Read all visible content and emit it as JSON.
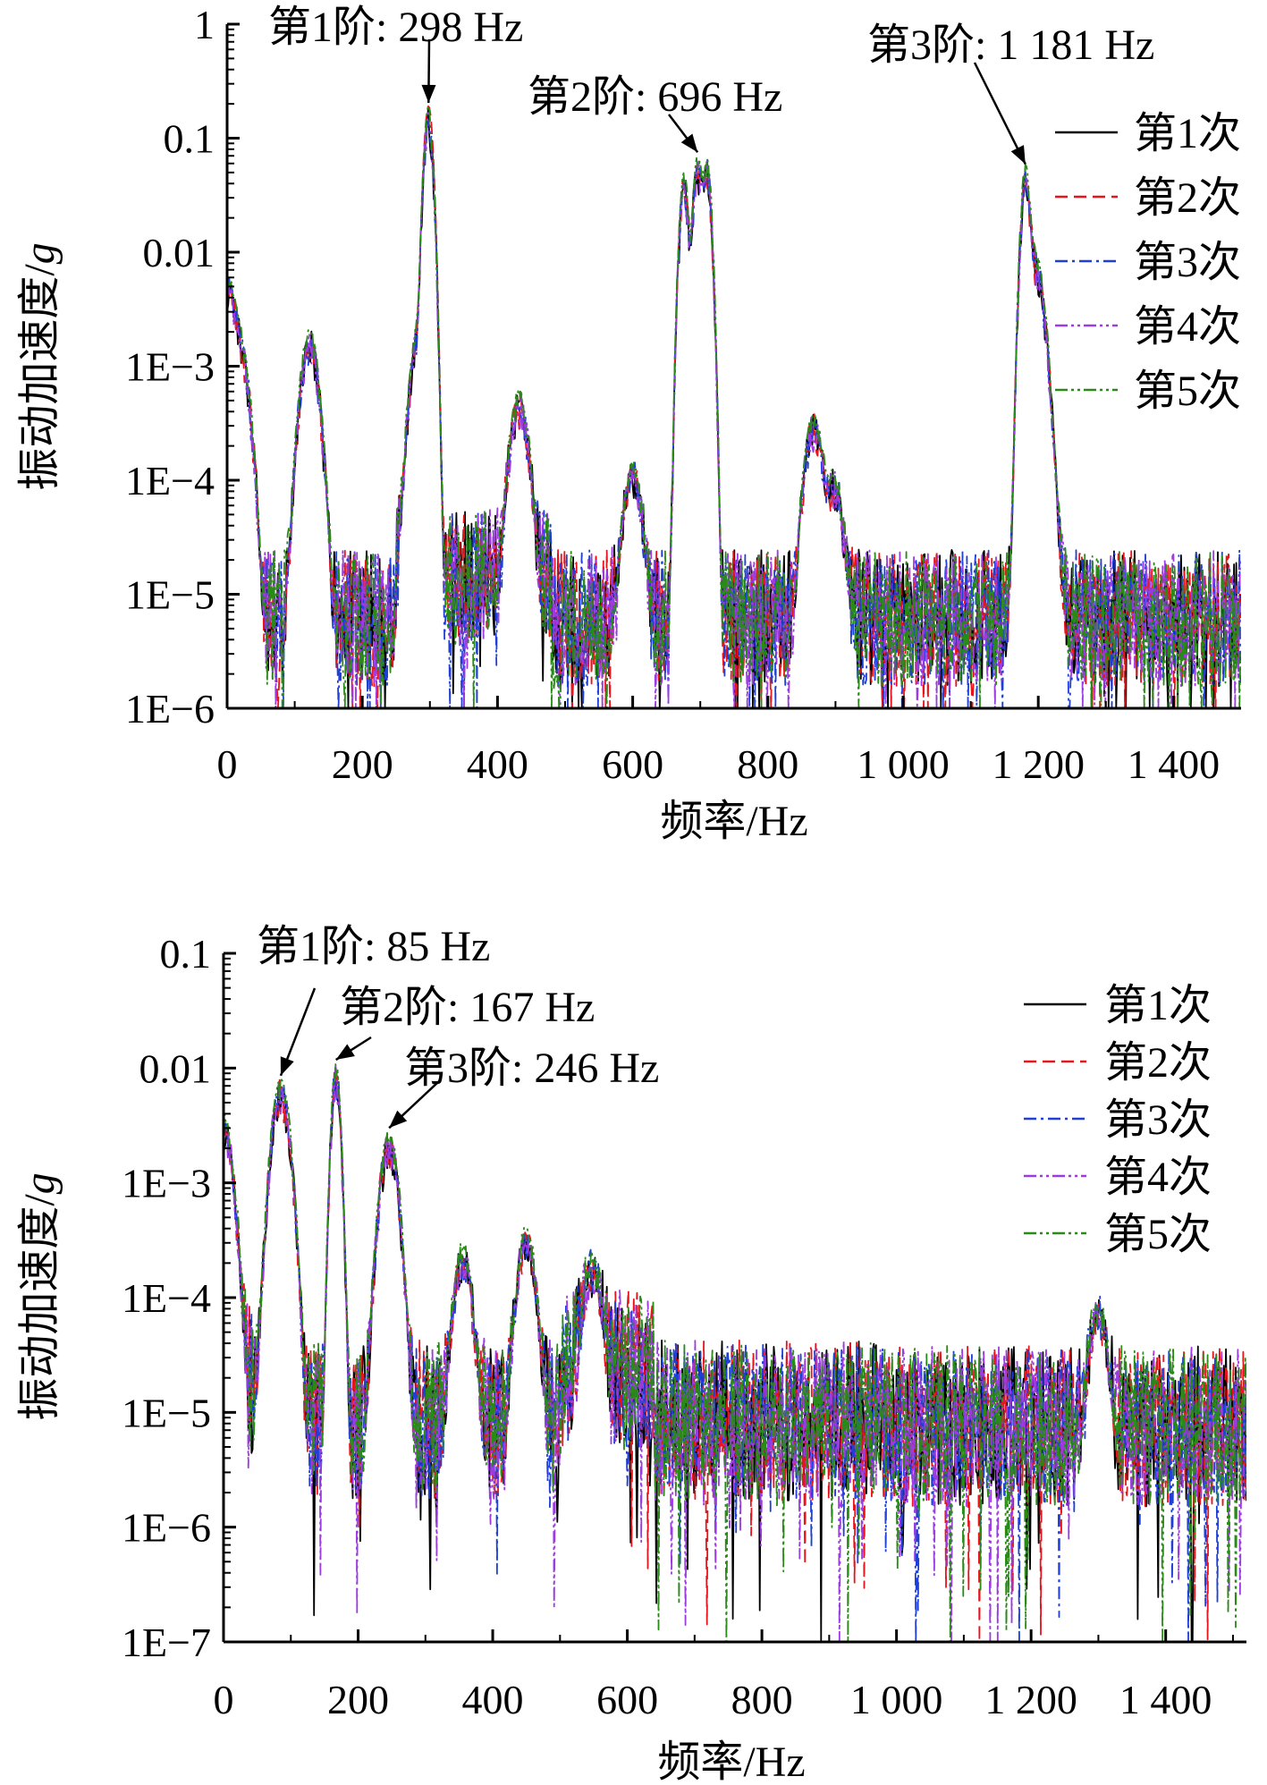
{
  "chart_data": [
    {
      "type": "line",
      "xlabel": "频率/Hz",
      "ylabel": "振动加速度/g",
      "xlim": [
        0,
        1500
      ],
      "ylim": [
        1e-06,
        1
      ],
      "yscale": "log",
      "xticks": [
        0,
        200,
        400,
        600,
        800,
        1000,
        1200,
        1400
      ],
      "xtick_labels": [
        "0",
        "200",
        "400",
        "600",
        "800",
        "1 000",
        "1 200",
        "1 400"
      ],
      "yticks": [
        1e-06,
        1e-05,
        0.0001,
        0.001,
        0.01,
        0.1,
        1
      ],
      "ytick_labels": [
        "1E−6",
        "1E−5",
        "1E−4",
        "1E−3",
        "0.01",
        "0.1",
        "1"
      ],
      "legend_position": "right",
      "series": [
        {
          "name": "第1次",
          "color": "#000000",
          "dash": "solid"
        },
        {
          "name": "第2次",
          "color": "#e8141c",
          "dash": "dashed"
        },
        {
          "name": "第3次",
          "color": "#1f3fd6",
          "dash": "dash-dot"
        },
        {
          "name": "第4次",
          "color": "#9b3be0",
          "dash": "dash-dot-dot"
        },
        {
          "name": "第5次",
          "color": "#2a8a18",
          "dash": "dash-dot-dot"
        }
      ],
      "peaks": [
        {
          "f": 0,
          "a": 0.006
        },
        {
          "f": 20,
          "a": 0.0015
        },
        {
          "f": 122,
          "a": 0.0021
        },
        {
          "f": 285,
          "a": 0.0025
        },
        {
          "f": 298,
          "a": 0.19
        },
        {
          "f": 432,
          "a": 0.0006
        },
        {
          "f": 600,
          "a": 0.00014
        },
        {
          "f": 676,
          "a": 0.05
        },
        {
          "f": 696,
          "a": 0.07
        },
        {
          "f": 710,
          "a": 0.065
        },
        {
          "f": 868,
          "a": 0.00038
        },
        {
          "f": 898,
          "a": 0.0001
        },
        {
          "f": 1181,
          "a": 0.055
        },
        {
          "f": 1195,
          "a": 0.01
        },
        {
          "f": 1210,
          "a": 0.00022
        }
      ],
      "annotations": [
        {
          "text": "第1阶: 298 Hz",
          "target_x": 298,
          "target_y": 0.19
        },
        {
          "text": "第2阶: 696 Hz",
          "target_x": 696,
          "target_y": 0.07
        },
        {
          "text": "第3阶: 1 181 Hz",
          "target_x": 1181,
          "target_y": 0.055
        }
      ]
    },
    {
      "type": "line",
      "xlabel": "频率/Hz",
      "ylabel": "振动加速度/g",
      "xlim": [
        0,
        1520
      ],
      "ylim": [
        1e-07,
        0.1
      ],
      "yscale": "log",
      "xticks": [
        0,
        200,
        400,
        600,
        800,
        1000,
        1200,
        1400
      ],
      "xtick_labels": [
        "0",
        "200",
        "400",
        "600",
        "800",
        "1 000",
        "1 200",
        "1 400"
      ],
      "yticks": [
        1e-07,
        1e-06,
        1e-05,
        0.0001,
        0.001,
        0.01,
        0.1
      ],
      "ytick_labels": [
        "1E−7",
        "1E−6",
        "1E−5",
        "1E−4",
        "1E−3",
        "0.01",
        "0.1"
      ],
      "legend_position": "top-right",
      "series": [
        {
          "name": "第1次",
          "color": "#000000",
          "dash": "solid"
        },
        {
          "name": "第2次",
          "color": "#e8141c",
          "dash": "dashed"
        },
        {
          "name": "第3次",
          "color": "#1f3fd6",
          "dash": "dash-dot"
        },
        {
          "name": "第4次",
          "color": "#9b3be0",
          "dash": "dash-dot-dot"
        },
        {
          "name": "第5次",
          "color": "#2a8a18",
          "dash": "dash-dot-dot"
        }
      ],
      "peaks": [
        {
          "f": 0,
          "a": 0.004
        },
        {
          "f": 85,
          "a": 0.008
        },
        {
          "f": 167,
          "a": 0.011
        },
        {
          "f": 246,
          "a": 0.0028
        },
        {
          "f": 355,
          "a": 0.00028
        },
        {
          "f": 450,
          "a": 0.0004
        },
        {
          "f": 548,
          "a": 0.0002
        },
        {
          "f": 1300,
          "a": 8e-05
        }
      ],
      "annotations": [
        {
          "text": "第1阶: 85 Hz",
          "target_x": 85,
          "target_y": 0.008
        },
        {
          "text": "第2阶: 167 Hz",
          "target_x": 167,
          "target_y": 0.011
        },
        {
          "text": "第3阶: 246 Hz",
          "target_x": 246,
          "target_y": 0.0028
        }
      ]
    }
  ]
}
